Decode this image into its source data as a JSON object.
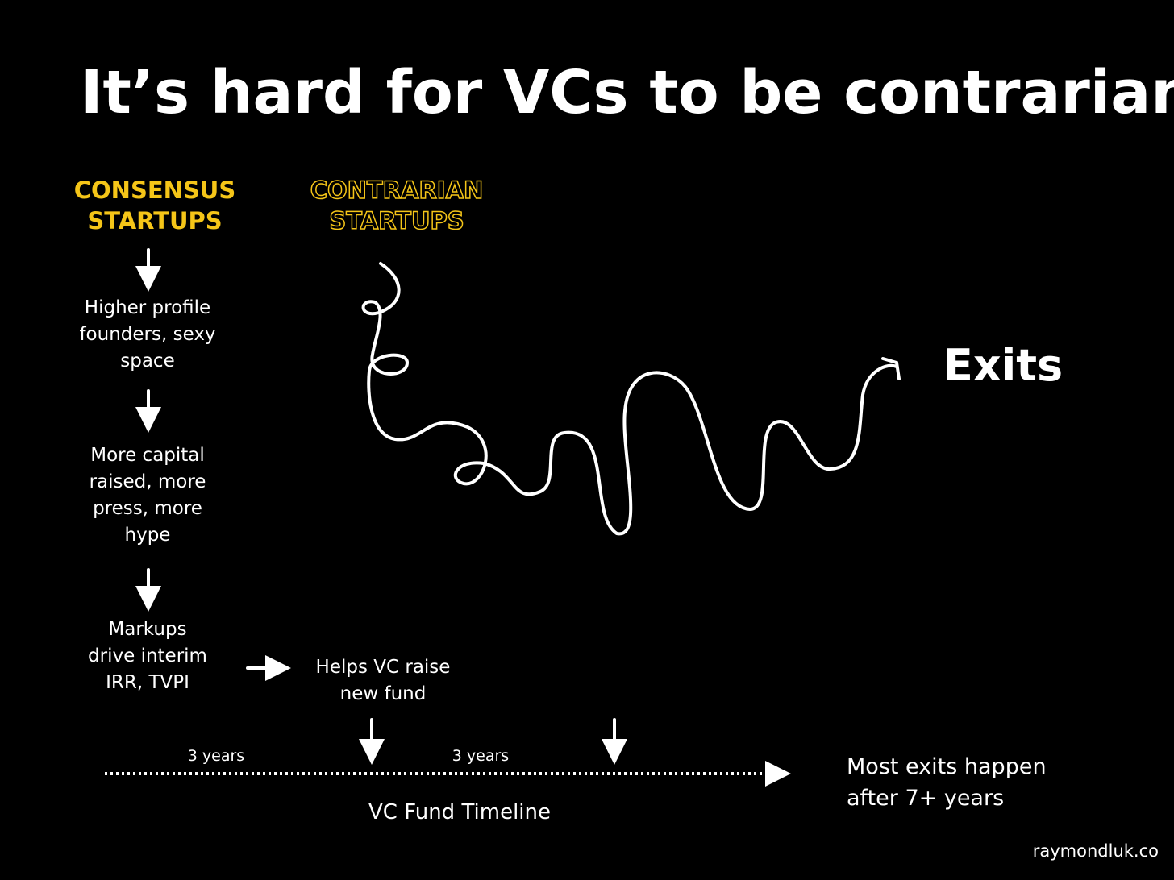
{
  "title": "It’s hard for VCs to be contrarian",
  "consensus": {
    "heading": [
      "CONSENSUS",
      "STARTUPS"
    ],
    "steps": [
      [
        "Higher profile",
        "founders, sexy",
        "space"
      ],
      [
        "More capital",
        "raised, more",
        "press, more",
        "hype"
      ],
      [
        "Markups",
        "drive interim",
        "IRR, TVPI"
      ]
    ]
  },
  "contrarian": {
    "heading": [
      "CONTRARIAN",
      "STARTUPS"
    ]
  },
  "raise": [
    "Helps VC raise",
    "new fund"
  ],
  "exits": "Exits",
  "timeline": {
    "label": "VC Fund Timeline",
    "segments": [
      "3 years",
      "3 years"
    ]
  },
  "note": [
    "Most exits happen",
    "after 7+ years"
  ],
  "credit": "raymondluk.co"
}
